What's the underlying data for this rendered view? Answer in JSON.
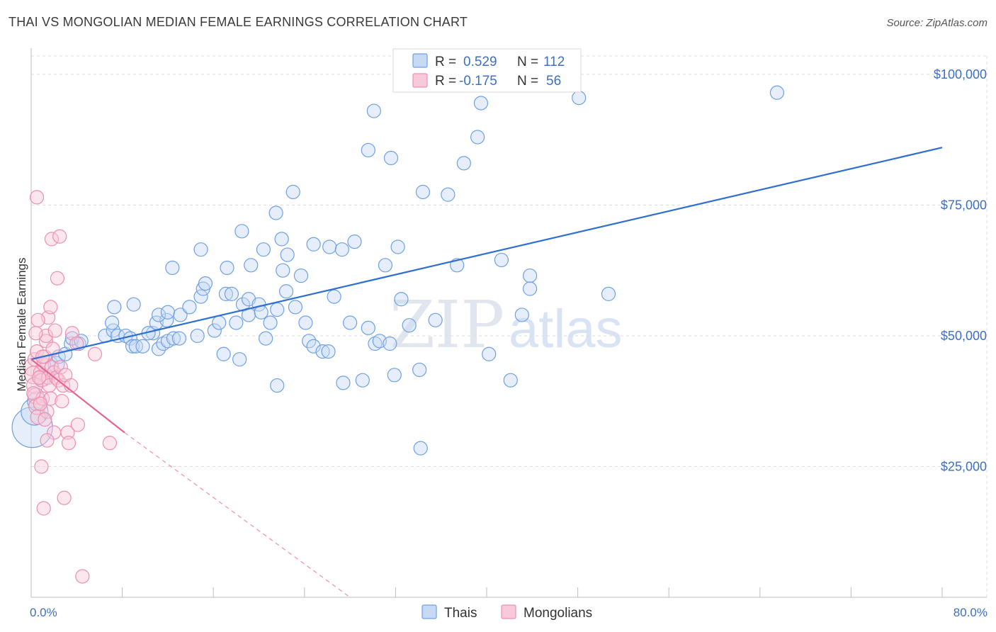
{
  "title": "THAI VS MONGOLIAN MEDIAN FEMALE EARNINGS CORRELATION CHART",
  "source": "Source: ZipAtlas.com",
  "watermark": {
    "zip": "ZIP",
    "atlas": "atlas"
  },
  "colors": {
    "thai": "#6fa0e6",
    "thai_fill": "#c6daf5",
    "thai_line": "#2f6fcf",
    "mongolian": "#ee8fb0",
    "mongolian_fill": "#f8c9da",
    "mongolian_line": "#e36592",
    "tick": "#3d6fc4",
    "grid": "#dcdcdc"
  },
  "legend": {
    "r_label": "R =",
    "n_label": "N =",
    "thai": {
      "r": "0.529",
      "n": "112"
    },
    "mongolian": {
      "r": "-0.175",
      "n": "56"
    }
  },
  "chart_data": {
    "type": "scatter",
    "xlabel": "",
    "ylabel": "Median Female Earnings",
    "xlim": [
      0,
      80
    ],
    "ylim": [
      0,
      105000
    ],
    "x_tick_labels": [
      {
        "value": 0,
        "label": "0.0%"
      },
      {
        "value": 80,
        "label": "80.0%"
      }
    ],
    "y_ticks": [
      {
        "value": 25000,
        "label": "$25,000"
      },
      {
        "value": 50000,
        "label": "$50,000"
      },
      {
        "value": 75000,
        "label": "$75,000"
      },
      {
        "value": 100000,
        "label": "$100,000"
      }
    ],
    "series": [
      {
        "name": "Thais",
        "trend": {
          "x": [
            0,
            80
          ],
          "y": [
            45500,
            86000
          ],
          "style": "solid"
        },
        "points": [
          [
            0.1,
            32500,
            3
          ],
          [
            0.3,
            35500,
            2
          ],
          [
            0.5,
            37500,
            1.4
          ],
          [
            1.0,
            42000,
            1.3
          ],
          [
            1.6,
            44500,
            1.3
          ],
          [
            2.2,
            44500,
            1.2
          ],
          [
            2.4,
            46000,
            1
          ],
          [
            3.0,
            46500,
            1
          ],
          [
            3.5,
            48500,
            1
          ],
          [
            4.2,
            48500,
            1
          ],
          [
            3.6,
            49500,
            1
          ],
          [
            6.5,
            50000,
            1
          ],
          [
            4.4,
            49000,
            1
          ],
          [
            7.2,
            51000,
            1
          ],
          [
            7.6,
            50000,
            1
          ],
          [
            8.3,
            50000,
            1
          ],
          [
            8.7,
            49500,
            1
          ],
          [
            8.9,
            48000,
            1
          ],
          [
            9.2,
            48000,
            1
          ],
          [
            9.8,
            48000,
            1
          ],
          [
            7.1,
            52500,
            1
          ],
          [
            10.7,
            50500,
            1
          ],
          [
            11.0,
            52500,
            1
          ],
          [
            11.2,
            47500,
            1
          ],
          [
            10.3,
            50500,
            1
          ],
          [
            11.6,
            48500,
            1
          ],
          [
            12.0,
            49000,
            1
          ],
          [
            12.5,
            49500,
            1
          ],
          [
            13.0,
            49500,
            1
          ],
          [
            14.6,
            50000,
            1
          ],
          [
            7.3,
            55500,
            1
          ],
          [
            9.0,
            56000,
            1
          ],
          [
            11.9,
            53000,
            1
          ],
          [
            11.2,
            54000,
            1
          ],
          [
            12.0,
            54500,
            1
          ],
          [
            13.1,
            54000,
            1
          ],
          [
            13.9,
            55500,
            1
          ],
          [
            14.9,
            57500,
            1
          ],
          [
            15.1,
            59000,
            1
          ],
          [
            15.3,
            60000,
            1
          ],
          [
            16.1,
            51000,
            1
          ],
          [
            16.5,
            52500,
            1
          ],
          [
            16.9,
            46500,
            1
          ],
          [
            17.1,
            58000,
            1
          ],
          [
            17.6,
            58000,
            1
          ],
          [
            18.0,
            52500,
            1
          ],
          [
            18.3,
            45500,
            1
          ],
          [
            18.6,
            56000,
            1
          ],
          [
            19.1,
            54000,
            1
          ],
          [
            19.1,
            57000,
            1
          ],
          [
            20.0,
            56000,
            1
          ],
          [
            20.2,
            54500,
            1
          ],
          [
            20.6,
            49500,
            1
          ],
          [
            21.0,
            52500,
            1
          ],
          [
            21.6,
            55000,
            1
          ],
          [
            21.6,
            40500,
            1
          ],
          [
            22.1,
            62500,
            1
          ],
          [
            22.4,
            58500,
            1
          ],
          [
            23.2,
            55500,
            1
          ],
          [
            23.7,
            61500,
            1
          ],
          [
            24.1,
            52500,
            1
          ],
          [
            24.4,
            49000,
            1
          ],
          [
            24.8,
            48000,
            1
          ],
          [
            25.6,
            47000,
            1
          ],
          [
            26.1,
            47000,
            1
          ],
          [
            26.6,
            57500,
            1
          ],
          [
            27.4,
            41000,
            1
          ],
          [
            28.0,
            52500,
            1
          ],
          [
            29.1,
            41500,
            1
          ],
          [
            29.6,
            51500,
            1
          ],
          [
            30.2,
            48500,
            1
          ],
          [
            30.6,
            49000,
            1
          ],
          [
            31.1,
            63500,
            1
          ],
          [
            31.5,
            48500,
            1
          ],
          [
            31.9,
            42500,
            1
          ],
          [
            32.5,
            57000,
            1
          ],
          [
            33.2,
            52000,
            1
          ],
          [
            34.1,
            43500,
            1
          ],
          [
            35.5,
            53000,
            1
          ],
          [
            37.4,
            63500,
            1
          ],
          [
            17.2,
            63000,
            1
          ],
          [
            19.3,
            63500,
            1
          ],
          [
            20.4,
            66500,
            1
          ],
          [
            22.5,
            65500,
            1
          ],
          [
            24.8,
            67500,
            1
          ],
          [
            26.2,
            67000,
            1
          ],
          [
            27.3,
            66500,
            1
          ],
          [
            28.4,
            68000,
            1
          ],
          [
            32.2,
            67000,
            1
          ],
          [
            12.4,
            63000,
            1
          ],
          [
            14.9,
            66500,
            1
          ],
          [
            18.5,
            70000,
            1
          ],
          [
            22.0,
            68500,
            1
          ],
          [
            21.5,
            73500,
            1
          ],
          [
            23.0,
            77500,
            1
          ],
          [
            34.4,
            77500,
            1
          ],
          [
            36.6,
            77000,
            1
          ],
          [
            41.3,
            64500,
            1
          ],
          [
            43.8,
            61500,
            1
          ],
          [
            43.8,
            59000,
            1
          ],
          [
            43.1,
            54000,
            1
          ],
          [
            50.7,
            58000,
            1
          ],
          [
            40.2,
            46500,
            1
          ],
          [
            42.1,
            41500,
            1
          ],
          [
            34.2,
            28500,
            1
          ],
          [
            29.6,
            85500,
            1
          ],
          [
            31.6,
            84000,
            1
          ],
          [
            38.0,
            83000,
            1
          ],
          [
            39.2,
            88000,
            1
          ],
          [
            39.5,
            94500,
            1
          ],
          [
            30.1,
            93000,
            1
          ],
          [
            48.1,
            95500,
            1
          ],
          [
            65.5,
            96500,
            1
          ]
        ]
      },
      {
        "name": "Mongolians",
        "trend": {
          "x": [
            0,
            8.2
          ],
          "y": [
            45500,
            31500
          ],
          "style": "solid",
          "dashed_to": [
            28,
            0
          ]
        },
        "points": [
          [
            0.1,
            44000,
            1.3
          ],
          [
            0.2,
            42500,
            1.3
          ],
          [
            0.3,
            40500,
            1.2
          ],
          [
            0.4,
            38500,
            1.2
          ],
          [
            0.5,
            36500,
            1.2
          ],
          [
            0.6,
            34500,
            1.1
          ],
          [
            0.3,
            45500,
            1
          ],
          [
            0.5,
            47000,
            1
          ],
          [
            0.8,
            43000,
            1
          ],
          [
            0.9,
            41500,
            1
          ],
          [
            1.0,
            38000,
            1
          ],
          [
            1.1,
            44500,
            1
          ],
          [
            1.2,
            46000,
            1
          ],
          [
            1.3,
            49000,
            1
          ],
          [
            1.5,
            42000,
            1
          ],
          [
            1.6,
            40500,
            1
          ],
          [
            1.7,
            38000,
            1
          ],
          [
            1.4,
            35500,
            1
          ],
          [
            1.8,
            44000,
            1
          ],
          [
            1.9,
            47500,
            1
          ],
          [
            2.0,
            43000,
            1
          ],
          [
            2.2,
            42000,
            1
          ],
          [
            2.4,
            41500,
            1
          ],
          [
            2.6,
            44000,
            1
          ],
          [
            2.8,
            40500,
            1
          ],
          [
            1.3,
            50000,
            1
          ],
          [
            1.5,
            53500,
            1
          ],
          [
            1.7,
            55500,
            1
          ],
          [
            2.1,
            51000,
            1
          ],
          [
            0.6,
            53000,
            1
          ],
          [
            0.5,
            76500,
            1
          ],
          [
            1.8,
            68500,
            1
          ],
          [
            2.5,
            69000,
            1
          ],
          [
            2.3,
            61000,
            1
          ],
          [
            3.6,
            50500,
            1
          ],
          [
            4.0,
            48500,
            1
          ],
          [
            5.6,
            46500,
            1
          ],
          [
            2.7,
            37500,
            1
          ],
          [
            3.2,
            31500,
            1
          ],
          [
            2.0,
            31500,
            1
          ],
          [
            1.4,
            30000,
            1
          ],
          [
            3.3,
            29500,
            1
          ],
          [
            4.1,
            33000,
            1
          ],
          [
            6.9,
            29500,
            1
          ],
          [
            0.9,
            25000,
            1
          ],
          [
            2.9,
            19000,
            1
          ],
          [
            1.1,
            17000,
            1
          ],
          [
            4.5,
            4000,
            1
          ],
          [
            0.2,
            39000,
            1
          ],
          [
            0.7,
            42000,
            1
          ],
          [
            1.0,
            46000,
            1
          ],
          [
            0.4,
            50500,
            1
          ],
          [
            3.0,
            42500,
            1
          ],
          [
            3.5,
            40500,
            1
          ],
          [
            0.8,
            37000,
            1
          ],
          [
            1.2,
            34000,
            1
          ]
        ]
      }
    ]
  },
  "bottom_legend": {
    "thai": "Thais",
    "mongolian": "Mongolians"
  }
}
